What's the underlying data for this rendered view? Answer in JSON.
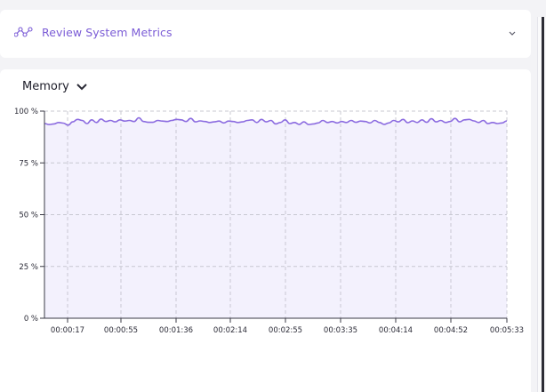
{
  "review": {
    "title": "Review System Metrics"
  },
  "metric_select": {
    "label": "Memory"
  },
  "colors": {
    "accent": "#7b5cd6",
    "line": "#8b6be0",
    "fill": "#f1eefd",
    "grid": "#c8c8d2"
  },
  "icons": {
    "review": "line-chart-icon",
    "expand": "chevron-down-icon",
    "select": "chevron-down-icon"
  },
  "chart_data": {
    "type": "area",
    "title": "",
    "xlabel": "",
    "ylabel": "",
    "ylim": [
      0,
      100
    ],
    "y_ticks": [
      "0 %",
      "25 %",
      "50 %",
      "75 %",
      "100 %"
    ],
    "x_ticks": [
      "00:00:17",
      "00:00:55",
      "00:01:36",
      "00:02:14",
      "00:02:55",
      "00:03:35",
      "00:04:14",
      "00:04:52",
      "00:05:33"
    ],
    "grid": true,
    "series": [
      {
        "values": [
          94,
          93.5,
          93.8,
          94.5,
          94.2,
          93.2,
          94.8,
          96,
          95.5,
          94,
          95.8,
          94.5,
          96.2,
          95,
          95.5,
          94.8,
          95.8,
          95.2,
          95.5,
          95,
          96.8,
          95,
          94.6,
          94.6,
          95.5,
          95.2,
          95,
          95.5,
          96,
          95.8,
          95,
          96.5,
          94.8,
          95.3,
          95,
          94.5,
          94.8,
          95.2,
          94.3,
          95.2,
          95,
          94.5,
          94.8,
          95.5,
          95.8,
          94.5,
          96,
          94.8,
          95.5,
          93.8,
          94.5,
          95.8,
          94,
          94.5,
          93.6,
          94.8,
          93.5,
          93.8,
          94.3,
          95.5,
          94.5,
          95,
          94.3,
          95,
          94.5,
          95.5,
          94.6,
          95.2,
          95,
          94.3,
          95.5,
          94.5,
          93.6,
          94.3,
          95.5,
          94.8,
          96,
          94.4,
          95.3,
          94.5,
          95.8,
          94.6,
          96.3,
          94.8,
          95.5,
          94.5,
          95,
          96.5,
          94.8,
          95.8,
          96,
          95.3,
          94.5,
          95.5,
          94,
          94.5,
          94,
          94.3,
          95.3
        ]
      }
    ]
  }
}
